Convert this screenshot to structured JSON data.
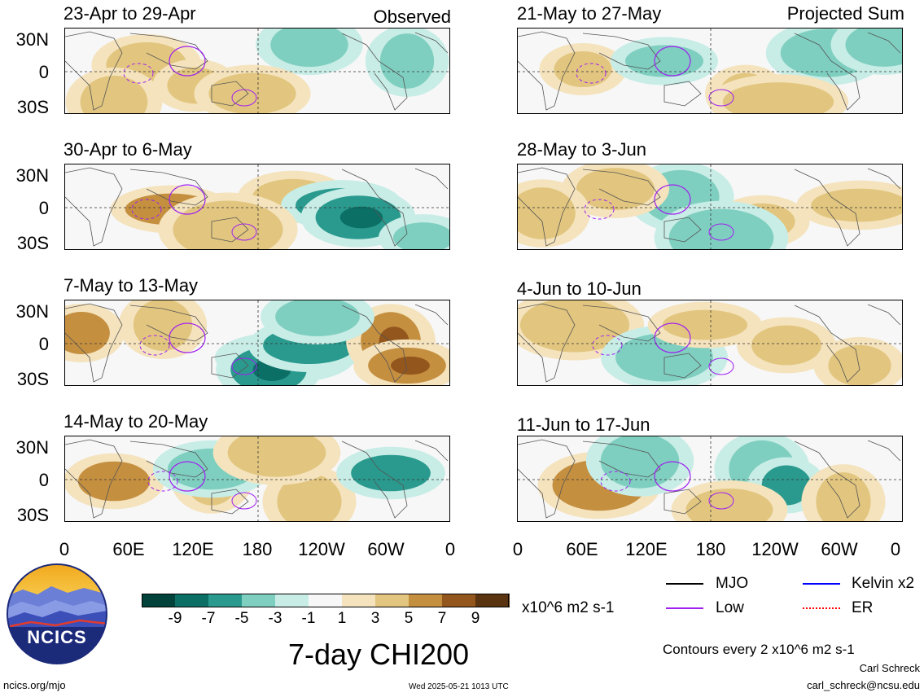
{
  "header": {
    "observed_label": "Observed",
    "projected_label": "Projected Sum"
  },
  "panels_left": [
    {
      "title": "23-Apr to 29-Apr"
    },
    {
      "title": "30-Apr to 6-May"
    },
    {
      "title": "7-May to 13-May"
    },
    {
      "title": "14-May to 20-May"
    }
  ],
  "panels_right": [
    {
      "title": "21-May to 27-May"
    },
    {
      "title": "28-May to 3-Jun"
    },
    {
      "title": "4-Jun to 10-Jun"
    },
    {
      "title": "11-Jun to 17-Jun"
    }
  ],
  "axes": {
    "y_ticks": [
      "30N",
      "0",
      "30S"
    ],
    "x_ticks": [
      "0",
      "60E",
      "120E",
      "180",
      "120W",
      "60W",
      "0"
    ]
  },
  "colorbar": {
    "colors": [
      "#01423a",
      "#0b6f66",
      "#2a9a8f",
      "#7fcfc0",
      "#c8ede6",
      "#f7f7f7",
      "#f4e3bd",
      "#e2c67f",
      "#c58f40",
      "#93561c",
      "#5a3410"
    ],
    "tick_labels": [
      "-9",
      "-7",
      "-5",
      "-3",
      "-1",
      "1",
      "3",
      "5",
      "7",
      "9"
    ],
    "units": "x10^6 m2 s-1"
  },
  "legend": {
    "items": [
      {
        "label": "MJO",
        "color": "#000000"
      },
      {
        "label": "Kelvin x2",
        "color": "#0000ff"
      },
      {
        "label": "Low",
        "color": "#a020f0"
      },
      {
        "label": "ER",
        "color": "#ff0000"
      }
    ],
    "contours_note": "Contours every 2 x10^6 m2 s-1",
    "author": "Carl Schreck",
    "email": "carl_schreck@ncsu.edu"
  },
  "main_title": "7-day CHI200",
  "logo": {
    "text": "NCICS"
  },
  "footer": {
    "url": "ncics.org/mjo",
    "timestamp": "Wed 2025-05-21 1013 UTC"
  }
}
